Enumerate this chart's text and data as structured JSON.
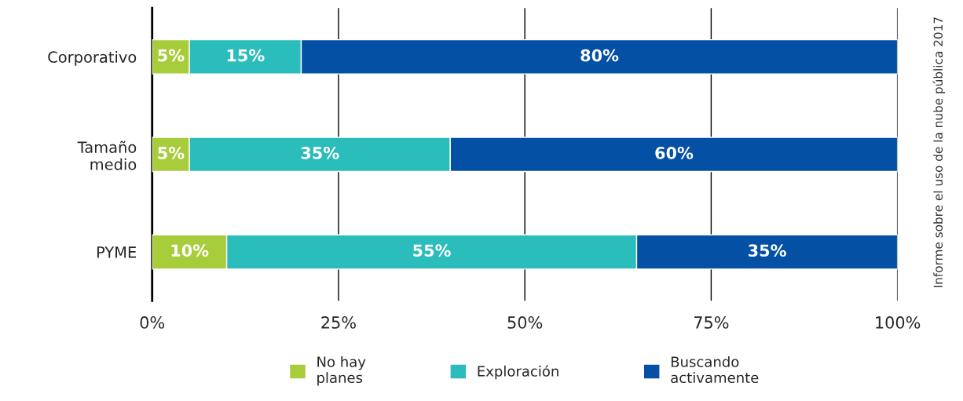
{
  "chart_data": {
    "type": "bar",
    "orientation": "horizontal",
    "stacked": true,
    "categories": [
      "Corporativo",
      "Tamaño\nmedio",
      "PYME"
    ],
    "series": [
      {
        "name": "No hay\nplanes",
        "color": "#a8cd3a",
        "values": [
          5,
          5,
          10
        ],
        "value_labels": [
          "5%",
          "5%",
          "10%"
        ]
      },
      {
        "name": "Exploración",
        "color": "#2bbcbc",
        "values": [
          15,
          35,
          55
        ],
        "value_labels": [
          "15%",
          "35%",
          "55%"
        ]
      },
      {
        "name": "Buscando\nactivamente",
        "color": "#0450a4",
        "values": [
          80,
          60,
          35
        ],
        "value_labels": [
          "80%",
          "60%",
          "35%"
        ]
      }
    ],
    "xlim": [
      0,
      100
    ],
    "xticks": [
      {
        "value": 0,
        "label": "0%"
      },
      {
        "value": 25,
        "label": "25%"
      },
      {
        "value": 50,
        "label": "50%"
      },
      {
        "value": 75,
        "label": "75%"
      },
      {
        "value": 100,
        "label": "100%"
      }
    ],
    "grid": "x",
    "legend": "bottom",
    "annotations": [
      "Informe sobre el uso de la nube pública 2017"
    ]
  }
}
